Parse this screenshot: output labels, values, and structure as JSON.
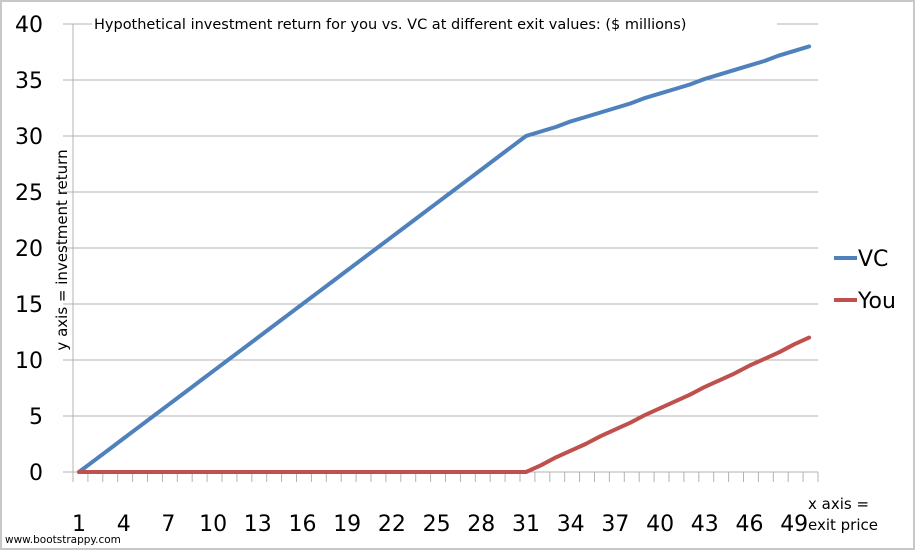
{
  "chart_data": {
    "type": "line",
    "title": "Hypothetical investment return for you vs. VC at different exit values: ($ millions)",
    "xlabel": "x axis = exit price",
    "xlabel_lines": [
      "x axis =",
      "exit price"
    ],
    "ylabel": "y axis = investment return",
    "ylim": [
      0,
      40
    ],
    "yticks": [
      0,
      5,
      10,
      15,
      20,
      25,
      30,
      35,
      40
    ],
    "xlim": [
      1,
      50
    ],
    "xtick_labels": [
      1,
      4,
      7,
      10,
      13,
      16,
      19,
      22,
      25,
      28,
      31,
      34,
      37,
      40,
      43,
      46,
      49
    ],
    "grid": "horizontal",
    "legend_position": "right",
    "x": [
      1,
      2,
      3,
      4,
      5,
      6,
      7,
      8,
      9,
      10,
      11,
      12,
      13,
      14,
      15,
      16,
      17,
      18,
      19,
      20,
      21,
      22,
      23,
      24,
      25,
      26,
      27,
      28,
      29,
      30,
      31,
      32,
      33,
      34,
      35,
      36,
      37,
      38,
      39,
      40,
      41,
      42,
      43,
      44,
      45,
      46,
      47,
      48,
      49,
      50
    ],
    "series": [
      {
        "name": "VC",
        "color": "#4f81bd",
        "values": [
          0,
          1,
          2,
          3,
          4,
          5,
          6,
          7,
          8,
          9,
          10,
          11,
          12,
          13,
          14,
          15,
          16,
          17,
          18,
          19,
          20,
          21,
          22,
          23,
          24,
          25,
          26,
          27,
          28,
          29,
          30,
          30.4,
          30.8,
          31.3,
          31.7,
          32.1,
          32.5,
          32.9,
          33.4,
          33.8,
          34.2,
          34.6,
          35.1,
          35.5,
          35.9,
          36.3,
          36.7,
          37.2,
          37.6,
          38
        ]
      },
      {
        "name": "You",
        "color": "#c0504d",
        "values": [
          0,
          0,
          0,
          0,
          0,
          0,
          0,
          0,
          0,
          0,
          0,
          0,
          0,
          0,
          0,
          0,
          0,
          0,
          0,
          0,
          0,
          0,
          0,
          0,
          0,
          0,
          0,
          0,
          0,
          0,
          0,
          0.6,
          1.3,
          1.9,
          2.5,
          3.2,
          3.8,
          4.4,
          5.1,
          5.7,
          6.3,
          6.9,
          7.6,
          8.2,
          8.8,
          9.5,
          10.1,
          10.7,
          11.4,
          12
        ]
      }
    ]
  },
  "watermark": "www.bootstrappy.com"
}
